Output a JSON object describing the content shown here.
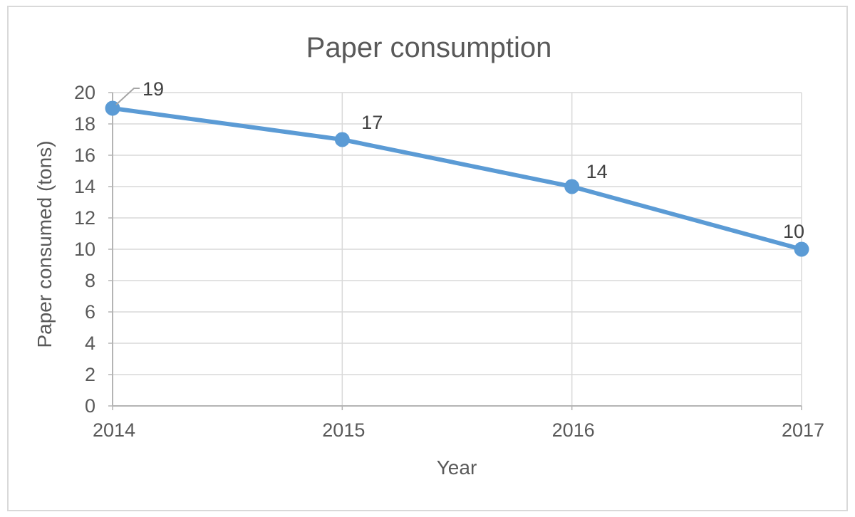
{
  "chart": {
    "title": "Paper consumption",
    "y_axis_title": "Paper consumed (tons)",
    "x_axis_title": "Year",
    "colors": {
      "series": "#5B9BD5",
      "gridline": "#D9D9D9",
      "axis_line": "#B4B4B4",
      "tick_label": "#595959",
      "title_text": "#595959",
      "axis_title_text": "#595959",
      "data_label_text": "#404040",
      "leader_line": "#A6A6A6",
      "frame_border": "#D9D9D9",
      "background": "#FFFFFF"
    }
  },
  "chart_data": {
    "type": "line",
    "title": "Paper consumption",
    "xlabel": "Year",
    "ylabel": "Paper consumed (tons)",
    "categories": [
      "2014",
      "2015",
      "2016",
      "2017"
    ],
    "values": [
      19,
      17,
      14,
      10
    ],
    "data_labels": [
      "19",
      "17",
      "14",
      "10"
    ],
    "ylim": [
      0,
      20
    ],
    "y_ticks": [
      0,
      2,
      4,
      6,
      8,
      10,
      12,
      14,
      16,
      18,
      20
    ],
    "grid": true,
    "legend": "none",
    "marker": "circle",
    "line_smooth": false
  }
}
